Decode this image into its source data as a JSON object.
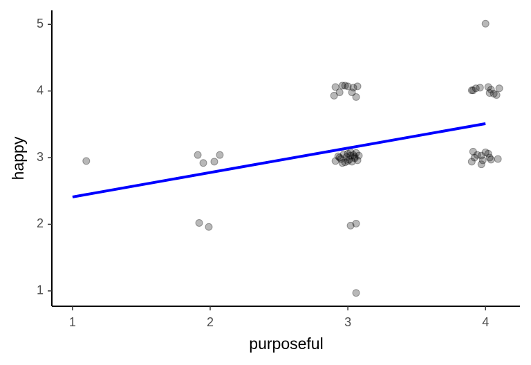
{
  "chart_data": {
    "type": "scatter",
    "x_label": "purposeful",
    "y_label": "happy",
    "xlim": [
      0.85,
      4.25
    ],
    "ylim": [
      0.77,
      5.21
    ],
    "xticks": [
      1,
      2,
      3,
      4
    ],
    "yticks": [
      1,
      2,
      3,
      4,
      5
    ],
    "points": {
      "color": "#000000",
      "x": [
        1.1,
        1.91,
        1.95,
        2.03,
        2.07,
        1.92,
        1.99,
        2.91,
        2.96,
        3.0,
        3.04,
        3.07,
        2.94,
        2.9,
        3.03,
        3.06,
        2.98,
        2.91,
        2.93,
        2.95,
        2.97,
        2.98,
        2.99,
        3.0,
        3.01,
        3.02,
        3.03,
        3.04,
        3.05,
        3.06,
        3.07,
        3.08,
        2.94,
        2.96,
        3.0,
        3.02,
        3.05,
        3.02,
        3.06,
        3.06,
        3.9,
        3.93,
        3.96,
        4.02,
        4.04,
        4.08,
        4.1,
        4.03,
        3.91,
        4.06,
        4.0,
        3.91,
        3.94,
        3.97,
        4.0,
        3.98,
        3.97,
        4.03,
        4.04,
        4.09,
        3.9,
        3.92,
        4.02
      ],
      "y": [
        2.95,
        3.04,
        2.92,
        2.94,
        3.04,
        2.02,
        1.96,
        4.06,
        4.08,
        4.07,
        4.05,
        4.07,
        3.98,
        3.93,
        3.98,
        3.91,
        4.08,
        2.95,
        3.02,
        2.98,
        3.05,
        2.93,
        3.01,
        3.06,
        2.97,
        3.03,
        2.94,
        3.04,
        2.99,
        3.07,
        2.96,
        3.03,
        3.0,
        2.92,
        2.95,
        3.08,
        3.01,
        1.98,
        2.01,
        0.97,
        4.01,
        4.04,
        4.05,
        4.06,
        4.02,
        3.94,
        4.04,
        3.97,
        4.01,
        3.96,
        5.01,
        3.09,
        3.04,
        3.03,
        3.08,
        2.96,
        2.9,
        3.0,
        2.97,
        2.98,
        2.94,
        3.0,
        3.06
      ]
    },
    "fit": {
      "color": "#0000ff",
      "x": [
        1,
        4
      ],
      "y": [
        2.41,
        3.51
      ]
    }
  }
}
